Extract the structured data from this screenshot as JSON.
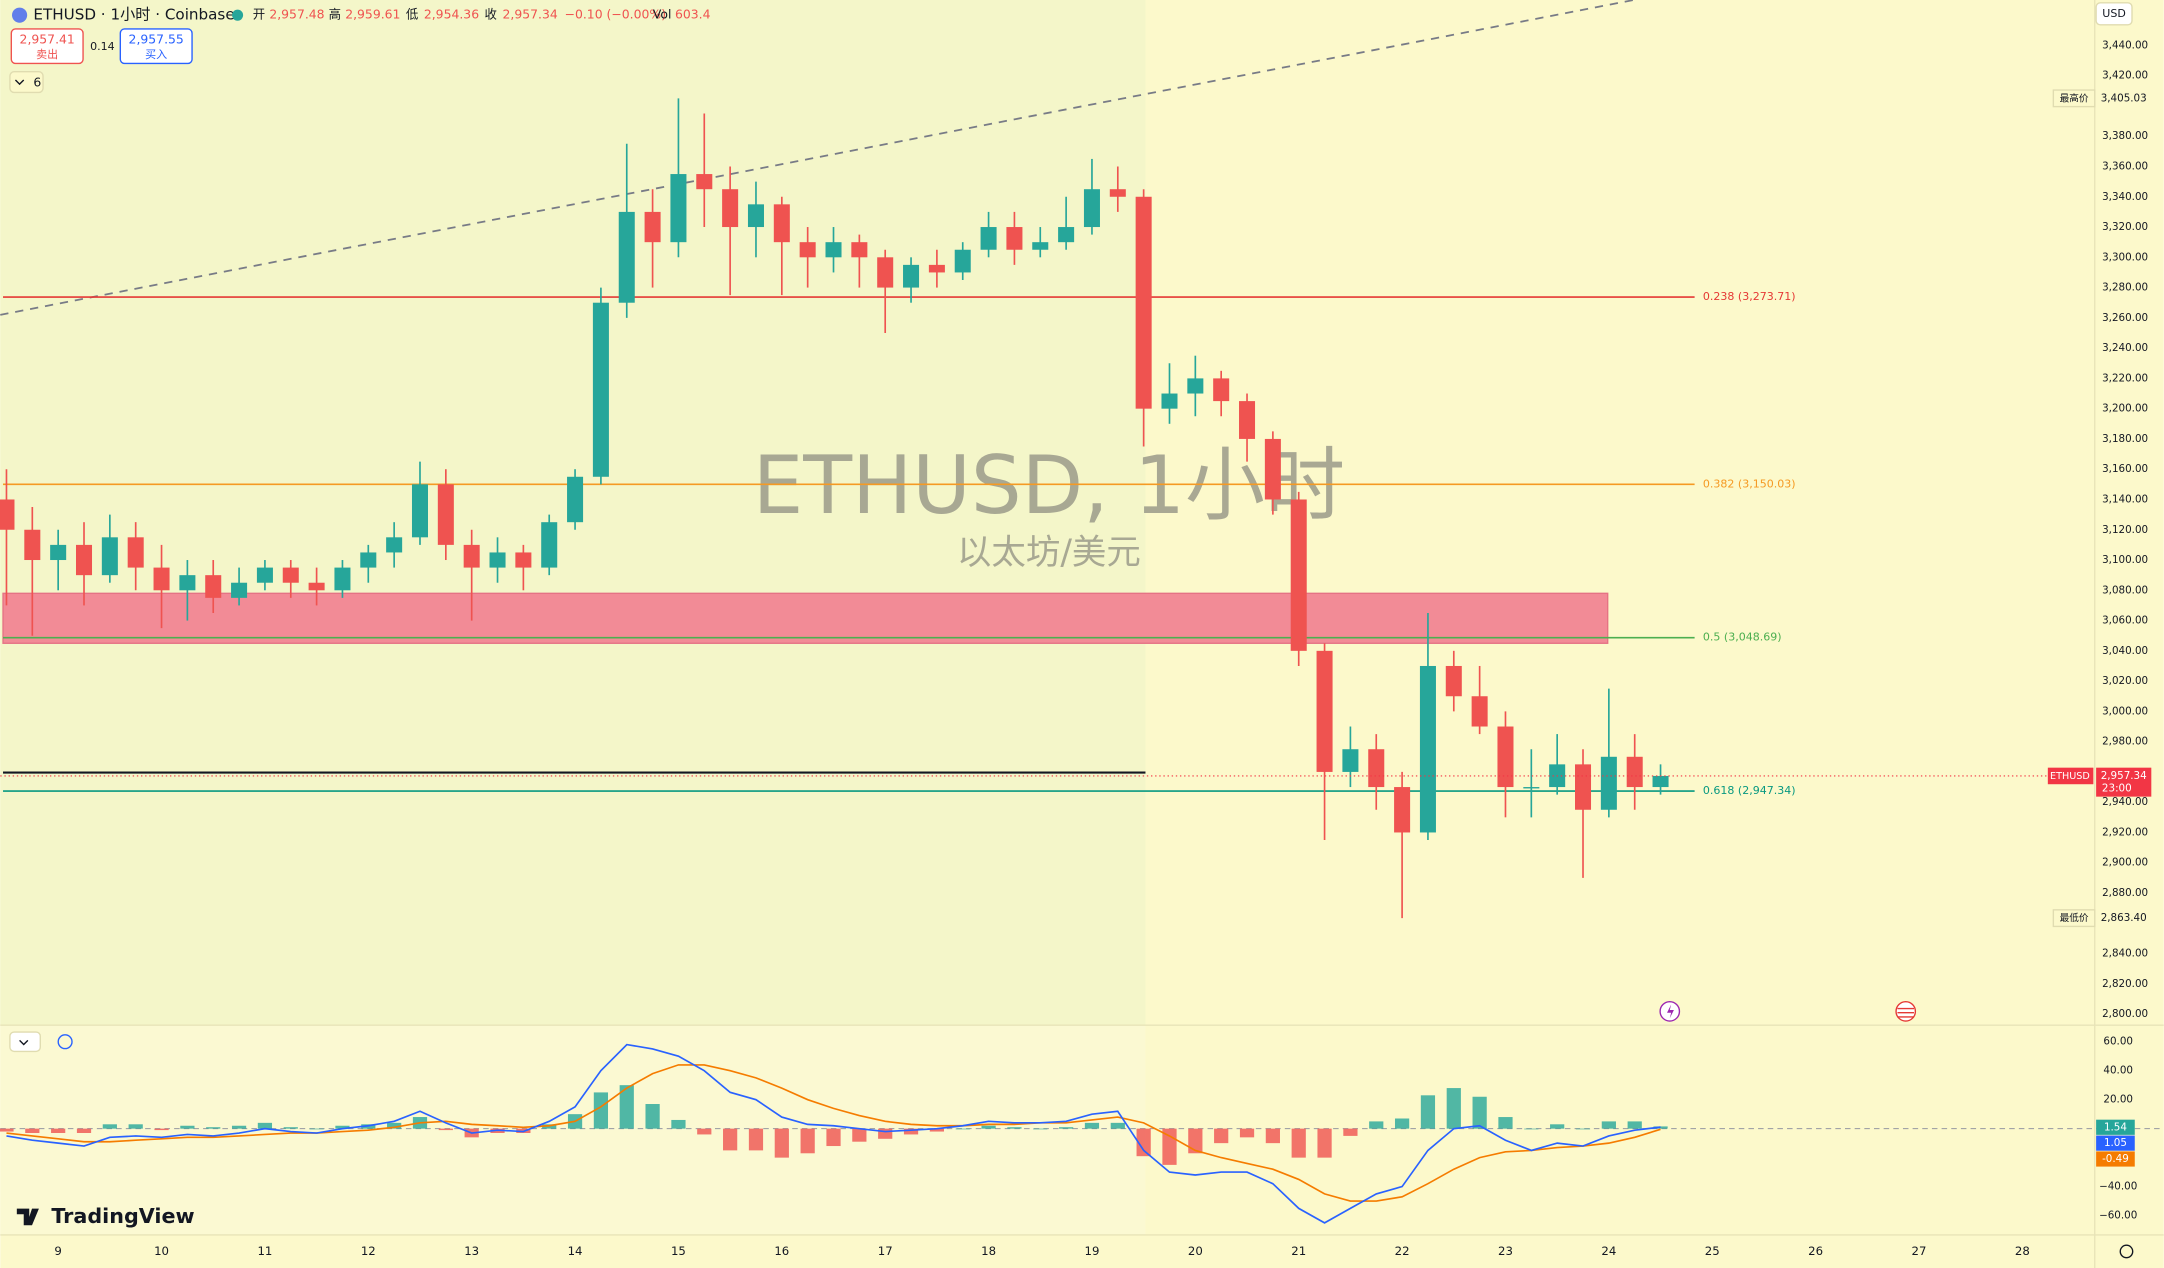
{
  "header": {
    "symbol": "ETHUSD · 1小时 · Coinbase",
    "open_label": "开",
    "open": "2,957.48",
    "high_label": "高",
    "high": "2,959.61",
    "low_label": "低",
    "low": "2,954.36",
    "close_label": "收",
    "close": "2,957.34",
    "change": "−0.10 (−0.00%)",
    "volume_label": "Vol",
    "volume": "603.4",
    "sell_price": "2,957.41",
    "sell_label": "卖出",
    "spread": "0.14",
    "buy_price": "2,957.55",
    "buy_label": "买入",
    "indicator_count": "6",
    "branding": "TradingView"
  },
  "chart_data": [
    {
      "type": "candlestick",
      "title": "ETHUSD, 1小时",
      "subtitle": "以太坊/美元",
      "currency": "USD",
      "x": [
        8.5,
        8.75,
        9,
        9.25,
        9.5,
        9.75,
        10,
        10.25,
        10.5,
        10.75,
        11,
        11.25,
        11.5,
        11.75,
        12,
        12.25,
        12.5,
        12.75,
        13,
        13.25,
        13.5,
        13.75,
        14,
        14.25,
        14.5,
        14.75,
        15,
        15.25,
        15.5,
        15.75,
        16,
        16.25,
        16.5,
        16.75,
        17,
        17.25,
        17.5,
        17.75,
        18,
        18.25,
        18.5,
        18.75,
        19,
        19.25,
        19.5,
        19.75,
        20,
        20.25,
        20.5,
        20.75,
        21,
        21.25,
        21.5,
        21.75,
        22,
        22.25,
        22.5,
        22.75,
        23,
        23.25,
        23.5,
        23.75,
        24,
        24.25,
        24.5
      ],
      "open": [
        3140,
        3120,
        3100,
        3110,
        3090,
        3115,
        3095,
        3080,
        3090,
        3075,
        3085,
        3095,
        3085,
        3080,
        3095,
        3105,
        3115,
        3150,
        3110,
        3095,
        3105,
        3095,
        3125,
        3155,
        3270,
        3330,
        3310,
        3355,
        3345,
        3320,
        3335,
        3310,
        3300,
        3310,
        3300,
        3280,
        3295,
        3290,
        3305,
        3320,
        3305,
        3310,
        3320,
        3345,
        3340,
        3200,
        3210,
        3220,
        3205,
        3180,
        3140,
        3040,
        2960,
        2975,
        2950,
        2920,
        3030,
        3010,
        2990,
        2950,
        2950,
        2965,
        2935,
        2970,
        2950
      ],
      "high": [
        3160,
        3135,
        3120,
        3125,
        3130,
        3125,
        3110,
        3100,
        3100,
        3095,
        3100,
        3100,
        3095,
        3100,
        3110,
        3125,
        3165,
        3160,
        3120,
        3115,
        3110,
        3130,
        3160,
        3280,
        3375,
        3345,
        3405.03,
        3395,
        3360,
        3350,
        3340,
        3320,
        3320,
        3315,
        3305,
        3300,
        3305,
        3310,
        3330,
        3330,
        3320,
        3340,
        3365,
        3360,
        3345,
        3230,
        3235,
        3225,
        3210,
        3185,
        3145,
        3045,
        2990,
        2985,
        2960,
        3065,
        3040,
        3030,
        3000,
        2975,
        2985,
        2975,
        3015,
        2985,
        2965
      ],
      "low": [
        3070,
        3050,
        3080,
        3070,
        3085,
        3080,
        3055,
        3060,
        3065,
        3070,
        3080,
        3075,
        3070,
        3075,
        3085,
        3095,
        3110,
        3100,
        3060,
        3085,
        3080,
        3090,
        3120,
        3150,
        3260,
        3280,
        3300,
        3320,
        3275,
        3300,
        3275,
        3280,
        3290,
        3280,
        3250,
        3270,
        3280,
        3285,
        3300,
        3295,
        3300,
        3305,
        3315,
        3330,
        3175,
        3190,
        3195,
        3195,
        3165,
        3130,
        3030,
        2915,
        2950,
        2935,
        2863.4,
        2915,
        3000,
        2985,
        2930,
        2930,
        2945,
        2890,
        2930,
        2935,
        2945
      ],
      "close": [
        3120,
        3100,
        3110,
        3090,
        3115,
        3095,
        3080,
        3090,
        3075,
        3085,
        3095,
        3085,
        3080,
        3095,
        3105,
        3115,
        3150,
        3110,
        3095,
        3105,
        3095,
        3125,
        3155,
        3270,
        3330,
        3310,
        3355,
        3345,
        3320,
        3335,
        3310,
        3300,
        3310,
        3300,
        3280,
        3295,
        3290,
        3305,
        3320,
        3305,
        3310,
        3320,
        3345,
        3340,
        3200,
        3210,
        3220,
        3205,
        3180,
        3140,
        3040,
        2960,
        2975,
        2950,
        2920,
        3030,
        3010,
        2990,
        2950,
        2950,
        2965,
        2935,
        2970,
        2950,
        2957.34
      ],
      "up_color": "#26a69a",
      "down_color": "#ef5350",
      "xlim": [
        8.44,
        28.7
      ],
      "xticks": [
        9,
        10,
        11,
        12,
        13,
        14,
        15,
        16,
        17,
        18,
        19,
        20,
        21,
        22,
        23,
        24,
        25,
        26,
        27,
        28
      ],
      "ylim": [
        2793.6,
        3470
      ],
      "yticks": [
        {
          "value": 2800,
          "label": "2,800.00"
        },
        {
          "value": 2820,
          "label": "2,820.00"
        },
        {
          "value": 2840,
          "label": "2,840.00"
        },
        {
          "value": 2880,
          "label": "2,880.00"
        },
        {
          "value": 2900,
          "label": "2,900.00"
        },
        {
          "value": 2920,
          "label": "2,920.00"
        },
        {
          "value": 2940,
          "label": "2,940.00"
        },
        {
          "value": 2980,
          "label": "2,980.00"
        },
        {
          "value": 3000,
          "label": "3,000.00"
        },
        {
          "value": 3020,
          "label": "3,020.00"
        },
        {
          "value": 3040,
          "label": "3,040.00"
        },
        {
          "value": 3060,
          "label": "3,060.00"
        },
        {
          "value": 3080,
          "label": "3,080.00"
        },
        {
          "value": 3100,
          "label": "3,100.00"
        },
        {
          "value": 3120,
          "label": "3,120.00"
        },
        {
          "value": 3140,
          "label": "3,140.00"
        },
        {
          "value": 3160,
          "label": "3,160.00"
        },
        {
          "value": 3180,
          "label": "3,180.00"
        },
        {
          "value": 3200,
          "label": "3,200.00"
        },
        {
          "value": 3220,
          "label": "3,220.00"
        },
        {
          "value": 3240,
          "label": "3,240.00"
        },
        {
          "value": 3260,
          "label": "3,260.00"
        },
        {
          "value": 3280,
          "label": "3,280.00"
        },
        {
          "value": 3300,
          "label": "3,300.00"
        },
        {
          "value": 3320,
          "label": "3,320.00"
        },
        {
          "value": 3340,
          "label": "3,340.00"
        },
        {
          "value": 3360,
          "label": "3,360.00"
        },
        {
          "value": 3380,
          "label": "3,380.00"
        },
        {
          "value": 3420,
          "label": "3,420.00"
        },
        {
          "value": 3440,
          "label": "3,440.00"
        }
      ],
      "fib_levels": [
        {
          "label": "0.238 (3,273.71)",
          "value": 3273.71,
          "color": "#e53935"
        },
        {
          "label": "0.382 (3,150.03)",
          "value": 3150.03,
          "color": "#f59a23"
        },
        {
          "label": "0.5 (3,048.69)",
          "value": 3048.69,
          "color": "#4caf50"
        },
        {
          "label": "0.618 (2,947.34)",
          "value": 2947.34,
          "color": "#089981"
        }
      ],
      "zone": {
        "top": 3078,
        "bottom": 3045,
        "color": "#f28b96"
      },
      "level_line": {
        "value": 2959.6,
        "color": "#131722"
      },
      "trend_line": {
        "x": [
          8.44,
          24.24
        ],
        "y": [
          3262,
          3470
        ],
        "color": "#787b86"
      },
      "high_marker": {
        "name": "最高价",
        "value": 3405.03,
        "value_label": "3,405.03"
      },
      "low_marker": {
        "name": "最低价",
        "value": 2863.4,
        "value_label": "2,863.40"
      },
      "last_price": {
        "name": "ETHUSD",
        "value": 2957.34,
        "value_label": "2,957.34",
        "countdown": "23:00",
        "color": "#f23645"
      }
    },
    {
      "type": "macd",
      "x": [
        8.5,
        8.75,
        9,
        9.25,
        9.5,
        9.75,
        10,
        10.25,
        10.5,
        10.75,
        11,
        11.25,
        11.5,
        11.75,
        12,
        12.25,
        12.5,
        12.75,
        13,
        13.25,
        13.5,
        13.75,
        14,
        14.25,
        14.5,
        14.75,
        15,
        15.25,
        15.5,
        15.75,
        16,
        16.25,
        16.5,
        16.75,
        17,
        17.25,
        17.5,
        17.75,
        18,
        18.25,
        18.5,
        18.75,
        19,
        19.25,
        19.5,
        19.75,
        20,
        20.25,
        20.5,
        20.75,
        21,
        21.25,
        21.5,
        21.75,
        22,
        22.25,
        22.5,
        22.75,
        23,
        23.25,
        23.5,
        23.75,
        24,
        24.25,
        24.5
      ],
      "histogram": {
        "values": [
          -2,
          -3,
          -3,
          -3,
          3,
          3,
          -1,
          2,
          1,
          2,
          4,
          1,
          0,
          2,
          3,
          4,
          8,
          -1,
          -6,
          -3,
          -3,
          3,
          10,
          25,
          30,
          17,
          6,
          -4,
          -15,
          -15,
          -20,
          -17,
          -12,
          -9,
          -7,
          -4,
          -2,
          0,
          2,
          1,
          0,
          1,
          4,
          4,
          -19,
          -25,
          -17,
          -10,
          -6,
          -10,
          -20,
          -20,
          -5,
          5,
          7,
          23,
          28,
          22,
          8,
          0,
          3,
          0,
          5,
          5,
          1.54
        ],
        "up_color": "#26a69a",
        "down_color": "#ef5350"
      },
      "macd": {
        "values": [
          -5,
          -8,
          -10,
          -12,
          -6,
          -5,
          -6,
          -4,
          -5,
          -3,
          0,
          -2,
          -3,
          0,
          2,
          5,
          12,
          4,
          -3,
          -1,
          -2,
          5,
          15,
          40,
          58,
          55,
          50,
          40,
          25,
          20,
          8,
          3,
          2,
          0,
          -2,
          -1,
          0,
          2,
          5,
          4,
          4,
          5,
          10,
          12,
          -15,
          -30,
          -32,
          -30,
          -30,
          -38,
          -55,
          -65,
          -55,
          -45,
          -40,
          -15,
          0,
          2,
          -8,
          -15,
          -10,
          -12,
          -5,
          -1,
          1.05
        ],
        "color": "#2962ff"
      },
      "signal": {
        "values": [
          -3,
          -5,
          -7,
          -9,
          -9,
          -8,
          -7,
          -6,
          -6,
          -5,
          -4,
          -3,
          -3,
          -2,
          -1,
          1,
          4,
          5,
          3,
          2,
          1,
          2,
          5,
          15,
          28,
          38,
          44,
          44,
          40,
          35,
          28,
          20,
          14,
          9,
          5,
          3,
          2,
          2,
          3,
          3,
          4,
          4,
          6,
          8,
          4,
          -5,
          -15,
          -20,
          -24,
          -28,
          -35,
          -45,
          -50,
          -50,
          -47,
          -38,
          -28,
          -20,
          -16,
          -15,
          -13,
          -12,
          -10,
          -6,
          -0.49
        ],
        "color": "#f57c00"
      },
      "ylim": [
        -73.3,
        71.4
      ],
      "yticks": [
        {
          "value": 60,
          "label": "60.00"
        },
        {
          "value": 40,
          "label": "40.00"
        },
        {
          "value": 20,
          "label": "20.00"
        },
        {
          "value": -40,
          "label": "−40.00"
        },
        {
          "value": -60,
          "label": "−60.00"
        }
      ]
    }
  ]
}
